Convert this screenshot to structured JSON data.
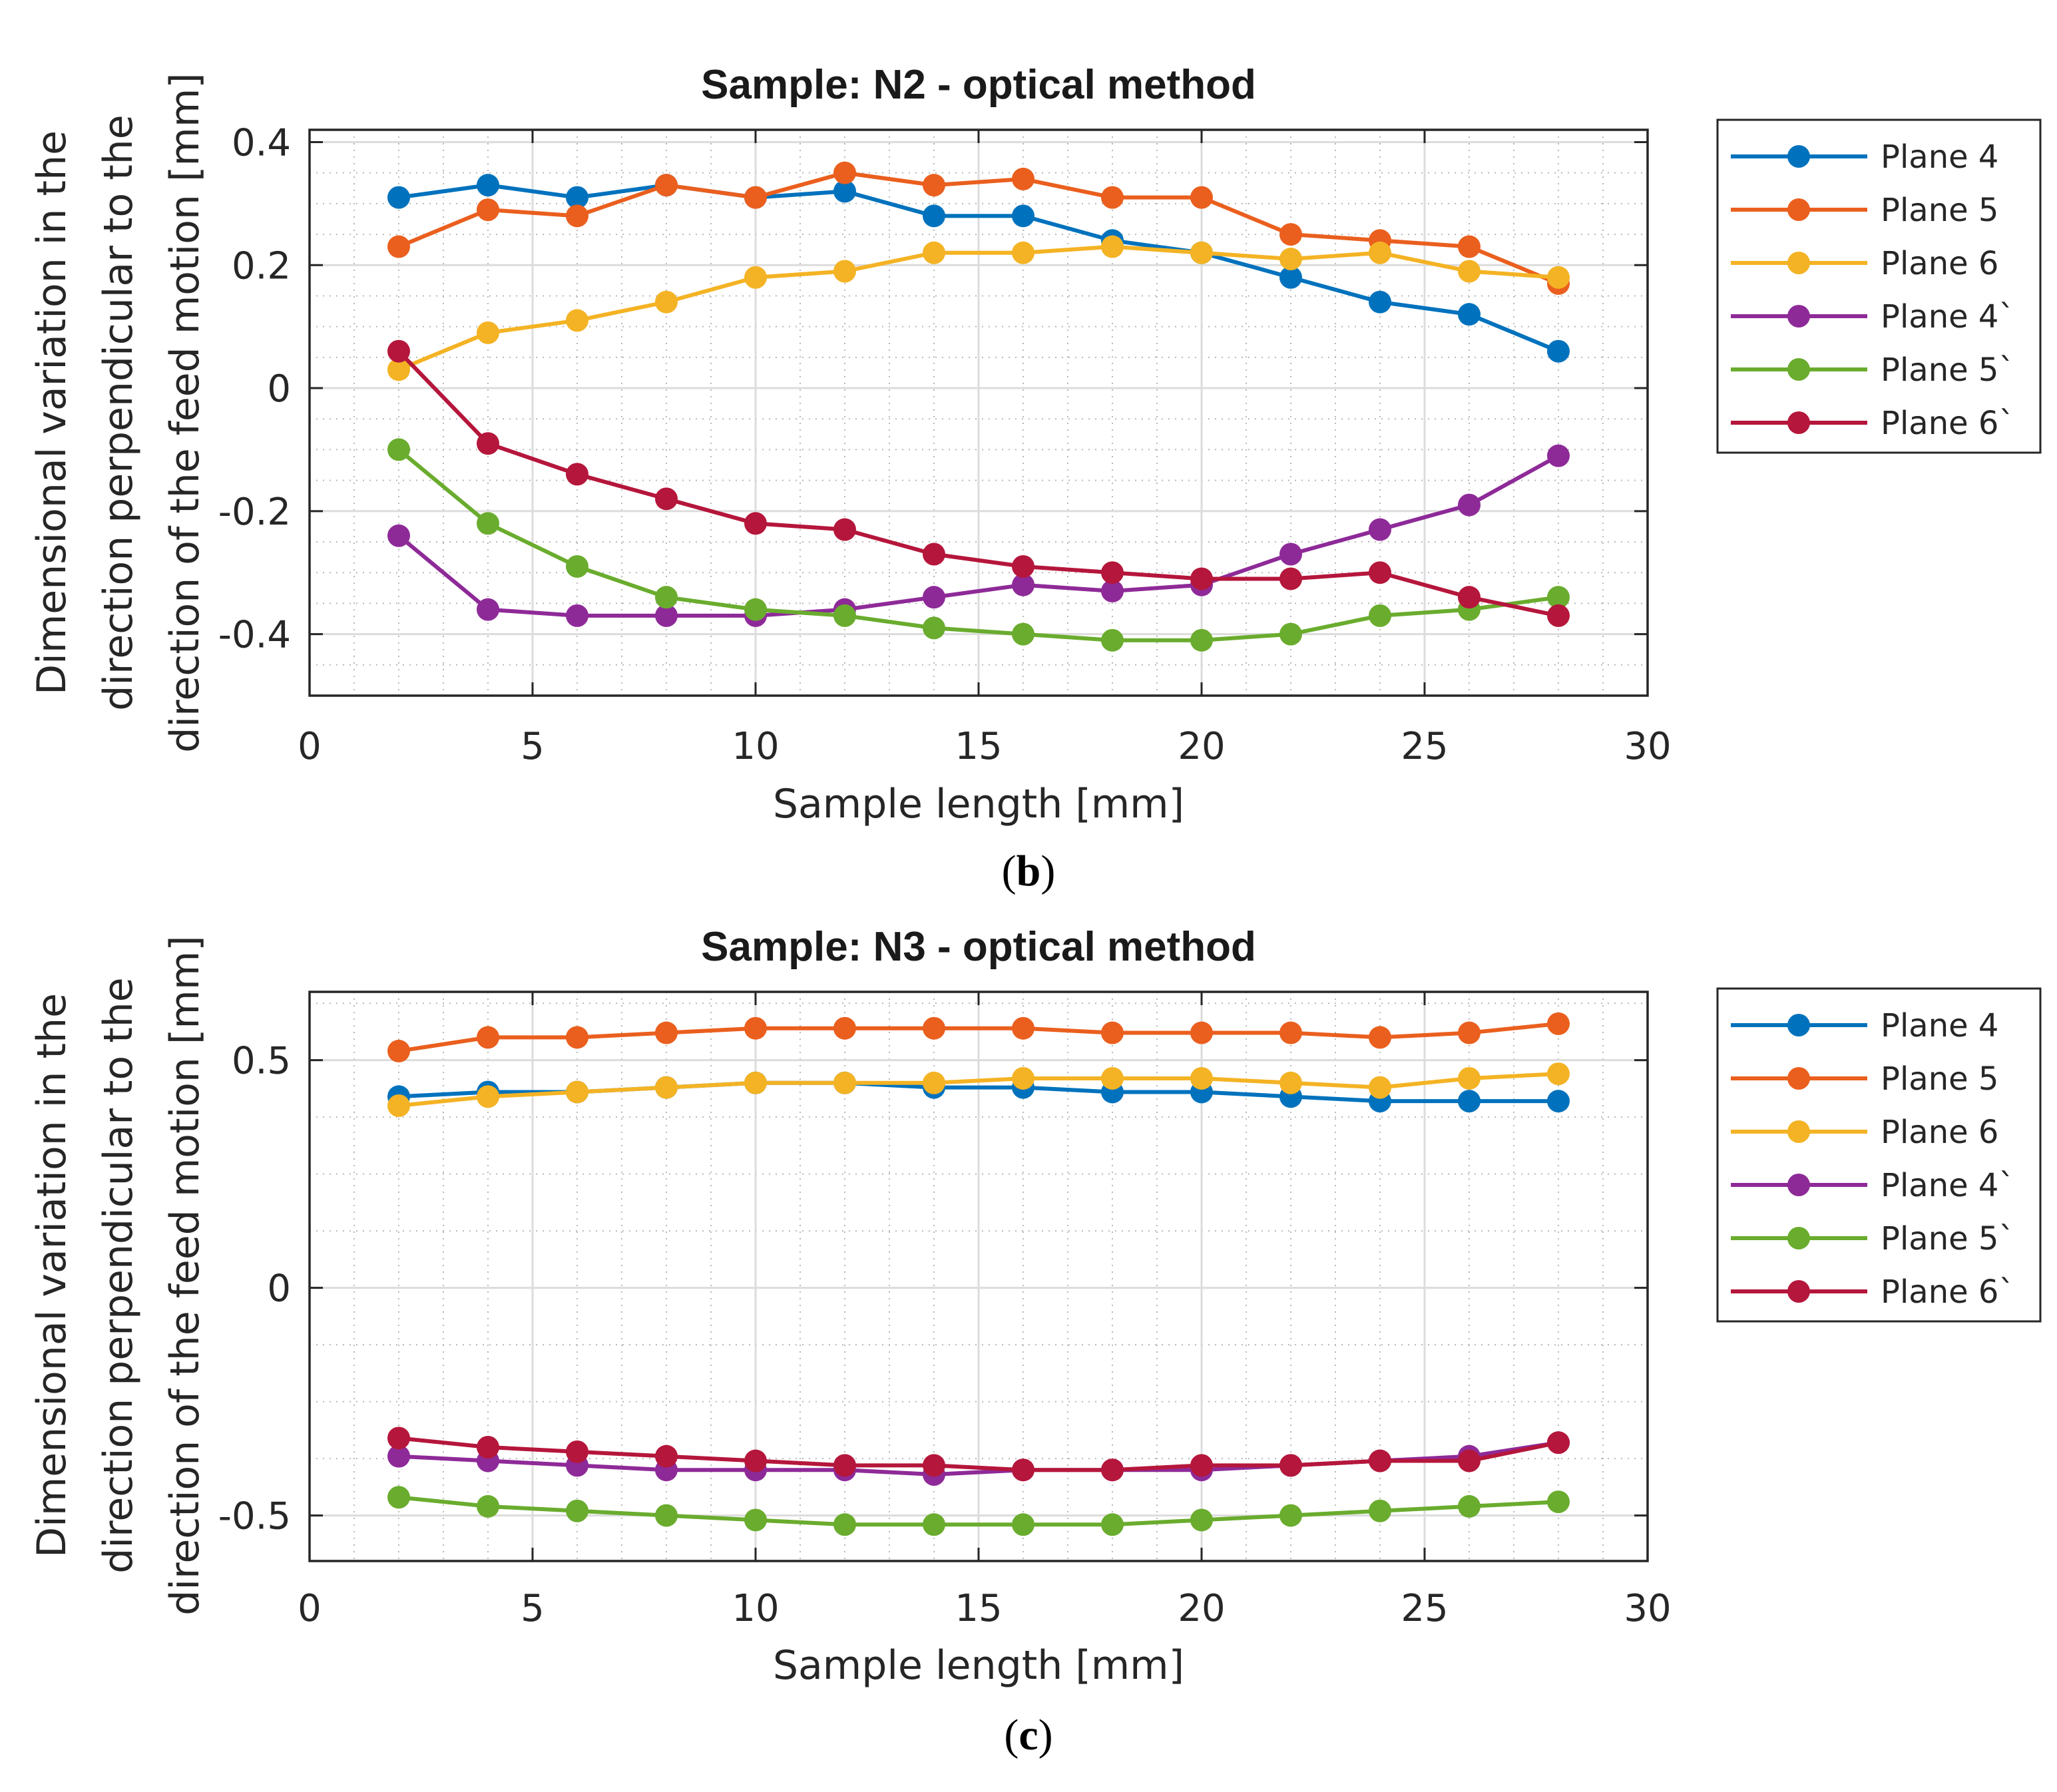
{
  "chart_data": [
    {
      "type": "line",
      "title": "Sample: N2 - optical method",
      "xlabel": "Sample length [mm]",
      "ylabel": [
        "Dimensional variation in the",
        "direction perpendicular to the",
        "direction of the feed motion [mm]"
      ],
      "caption": "b",
      "xlim": [
        0,
        30
      ],
      "ylim": [
        -0.5,
        0.42
      ],
      "xticks": [
        0,
        5,
        10,
        15,
        20,
        25,
        30
      ],
      "xtick_labels": [
        "0",
        "5",
        "10",
        "15",
        "20",
        "25",
        "30"
      ],
      "yticks": [
        -0.4,
        -0.2,
        0,
        0.2,
        0.4
      ],
      "ytick_labels": [
        "-0.4",
        "-0.2",
        "0",
        "0.2",
        "0.4"
      ],
      "grid": true,
      "legend_position": "outside-right",
      "x": [
        2,
        4,
        6,
        8,
        10,
        12,
        14,
        16,
        18,
        20,
        22,
        24,
        26,
        28
      ],
      "series": [
        {
          "name": "Plane 4",
          "color": "#0072bd",
          "values": [
            0.31,
            0.33,
            0.31,
            0.33,
            0.31,
            0.32,
            0.28,
            0.28,
            0.24,
            0.22,
            0.18,
            0.14,
            0.12,
            0.06
          ]
        },
        {
          "name": "Plane 5",
          "color": "#ea5f1e",
          "values": [
            0.23,
            0.29,
            0.28,
            0.33,
            0.31,
            0.35,
            0.33,
            0.34,
            0.31,
            0.31,
            0.25,
            0.24,
            0.23,
            0.17
          ]
        },
        {
          "name": "Plane 6",
          "color": "#f4b324",
          "values": [
            0.03,
            0.09,
            0.11,
            0.14,
            0.18,
            0.19,
            0.22,
            0.22,
            0.23,
            0.22,
            0.21,
            0.22,
            0.19,
            0.18
          ]
        },
        {
          "name": "Plane 4`",
          "color": "#8e2a98",
          "values": [
            -0.24,
            -0.36,
            -0.37,
            -0.37,
            -0.37,
            -0.36,
            -0.34,
            -0.32,
            -0.33,
            -0.32,
            -0.27,
            -0.23,
            -0.19,
            -0.11
          ]
        },
        {
          "name": "Plane 5`",
          "color": "#6aac2e",
          "values": [
            -0.1,
            -0.22,
            -0.29,
            -0.34,
            -0.36,
            -0.37,
            -0.39,
            -0.4,
            -0.41,
            -0.41,
            -0.4,
            -0.37,
            -0.36,
            -0.34
          ]
        },
        {
          "name": "Plane 6`",
          "color": "#b5163b",
          "values": [
            0.06,
            -0.09,
            -0.14,
            -0.18,
            -0.22,
            -0.23,
            -0.27,
            -0.29,
            -0.3,
            -0.31,
            -0.31,
            -0.3,
            -0.34,
            -0.37
          ]
        }
      ]
    },
    {
      "type": "line",
      "title": "Sample: N3 - optical method",
      "xlabel": "Sample length [mm]",
      "ylabel": [
        "Dimensional variation in the",
        "direction perpendicular to the",
        "direction of the feed motion [mm]"
      ],
      "caption": "c",
      "xlim": [
        0,
        30
      ],
      "ylim": [
        -0.6,
        0.65
      ],
      "xticks": [
        0,
        5,
        10,
        15,
        20,
        25,
        30
      ],
      "xtick_labels": [
        "0",
        "5",
        "10",
        "15",
        "20",
        "25",
        "30"
      ],
      "yticks": [
        -0.5,
        0,
        0.5
      ],
      "ytick_labels": [
        "-0.5",
        "0",
        "0.5"
      ],
      "grid": true,
      "legend_position": "outside-right",
      "x": [
        2,
        4,
        6,
        8,
        10,
        12,
        14,
        16,
        18,
        20,
        22,
        24,
        26,
        28
      ],
      "series": [
        {
          "name": "Plane 4",
          "color": "#0072bd",
          "values": [
            0.42,
            0.43,
            0.43,
            0.44,
            0.45,
            0.45,
            0.44,
            0.44,
            0.43,
            0.43,
            0.42,
            0.41,
            0.41,
            0.41
          ]
        },
        {
          "name": "Plane 5",
          "color": "#ea5f1e",
          "values": [
            0.52,
            0.55,
            0.55,
            0.56,
            0.57,
            0.57,
            0.57,
            0.57,
            0.56,
            0.56,
            0.56,
            0.55,
            0.56,
            0.58
          ]
        },
        {
          "name": "Plane 6",
          "color": "#f4b324",
          "values": [
            0.4,
            0.42,
            0.43,
            0.44,
            0.45,
            0.45,
            0.45,
            0.46,
            0.46,
            0.46,
            0.45,
            0.44,
            0.46,
            0.47
          ]
        },
        {
          "name": "Plane 4`",
          "color": "#8e2a98",
          "values": [
            -0.37,
            -0.38,
            -0.39,
            -0.4,
            -0.4,
            -0.4,
            -0.41,
            -0.4,
            -0.4,
            -0.4,
            -0.39,
            -0.38,
            -0.37,
            -0.34
          ]
        },
        {
          "name": "Plane 5`",
          "color": "#6aac2e",
          "values": [
            -0.46,
            -0.48,
            -0.49,
            -0.5,
            -0.51,
            -0.52,
            -0.52,
            -0.52,
            -0.52,
            -0.51,
            -0.5,
            -0.49,
            -0.48,
            -0.47
          ]
        },
        {
          "name": "Plane 6`",
          "color": "#b5163b",
          "values": [
            -0.33,
            -0.35,
            -0.36,
            -0.37,
            -0.38,
            -0.39,
            -0.39,
            -0.4,
            -0.4,
            -0.39,
            -0.39,
            -0.38,
            -0.38,
            -0.34
          ]
        }
      ]
    }
  ]
}
